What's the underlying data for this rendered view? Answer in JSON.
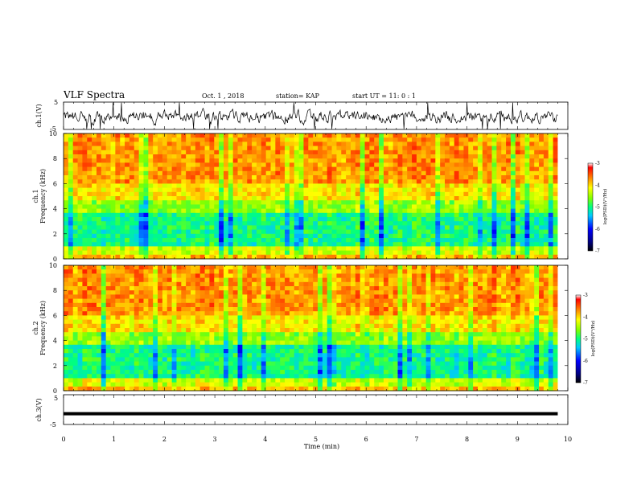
{
  "header": {
    "title": "VLF Spectra",
    "date": "Oct. 1  , 2018",
    "station": "station= KAP",
    "start_ut": "start  UT =   11: 0  : 1"
  },
  "chart_data": [
    {
      "type": "line",
      "panel": "ch1-waveform",
      "ylabel": "ch.1(V)",
      "ylim": [
        -5,
        5
      ],
      "yticks": [
        "5",
        "-5"
      ],
      "xlim": [
        0,
        10
      ],
      "series_color": "#000000",
      "description_values": "noisy waveform between about -4 and 3 V"
    },
    {
      "type": "heatmap",
      "panel": "ch1-spectrogram",
      "ylabel_top": "ch.1",
      "ylabel": "Frequency  (kHz)",
      "ylim": [
        0,
        10
      ],
      "yticks": [
        "0",
        "2",
        "4",
        "6",
        "8",
        "10"
      ],
      "xlim": [
        0,
        9.8
      ],
      "colorbar": {
        "label": "log(PSD)(V²/Hz)",
        "range": [
          -7,
          -3
        ],
        "ticks": [
          "-3",
          "-4",
          "-5",
          "-6",
          "-7"
        ]
      }
    },
    {
      "type": "heatmap",
      "panel": "ch2-spectrogram",
      "ylabel_top": "ch.2",
      "ylabel": "Frequency  (kHz)",
      "ylim": [
        0,
        10
      ],
      "yticks": [
        "0",
        "2",
        "4",
        "6",
        "8",
        "10"
      ],
      "xlim": [
        0,
        9.8
      ],
      "colorbar": {
        "label": "log(PSD)(V²/Hz)",
        "range": [
          -7,
          -3
        ],
        "ticks": [
          "-3",
          "-4",
          "-5",
          "-6",
          "-7"
        ]
      }
    },
    {
      "type": "line",
      "panel": "ch3-waveform",
      "ylabel": "ch.3(V)",
      "ylim": [
        -5,
        5
      ],
      "yticks": [
        "5",
        "-5"
      ],
      "x": [
        0,
        9.8
      ],
      "y": [
        -1.4,
        -1.4
      ]
    }
  ],
  "xaxis": {
    "label": "Time  (min)",
    "ticks": [
      "0",
      "1",
      "2",
      "3",
      "4",
      "5",
      "6",
      "7",
      "8",
      "9",
      "10"
    ]
  }
}
